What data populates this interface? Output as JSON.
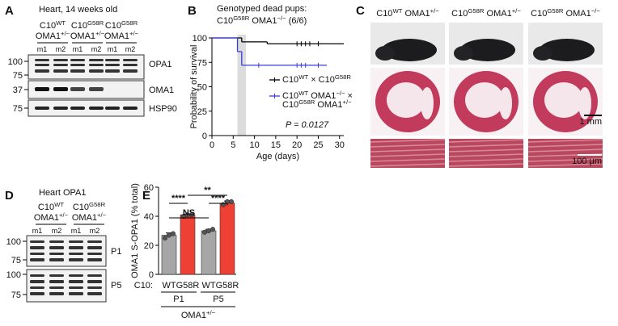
{
  "panel_a": {
    "letter": "A",
    "title": "Heart, 14 weeks old",
    "groups": [
      {
        "line1": [
          "C10",
          "WT"
        ],
        "line2": [
          "OMA1",
          "+/−"
        ]
      },
      {
        "line1": [
          "C10",
          "G58R"
        ],
        "line2": [
          "OMA1",
          "+/−"
        ]
      },
      {
        "line1": [
          "C10",
          "G58R"
        ],
        "line2": [
          "OMA1",
          "+/−"
        ]
      }
    ],
    "lanes": [
      "m1",
      "m2",
      "m1",
      "m2",
      "m1",
      "m2"
    ],
    "markers": [
      "100",
      "75",
      "37",
      "75"
    ],
    "bands": [
      "OPA1",
      "OMA1",
      "HSP90"
    ]
  },
  "chart_data": [
    {
      "type": "line",
      "letter": "B",
      "title": "Genotyped dead pups:",
      "subtitle": [
        "C10",
        "G58R",
        " OMA1",
        "−/−",
        " (6/6)"
      ],
      "xlabel": "Age (days)",
      "ylabel": "Probability of survival",
      "xlim": [
        0,
        31
      ],
      "xticks": [
        0,
        5,
        10,
        15,
        20,
        25,
        30
      ],
      "ylim": [
        0,
        100
      ],
      "yticks": [
        0,
        25,
        50,
        75,
        100
      ],
      "shaded_x": [
        6,
        8
      ],
      "annotation": "P = 0.0127",
      "series": [
        {
          "name": [
            "C10",
            "WT",
            " × C10",
            "G58R"
          ],
          "color": "#000000",
          "x": [
            0,
            7,
            13,
            31
          ],
          "values": [
            100,
            96,
            94,
            94
          ],
          "censored_x": [
            20,
            21,
            22,
            23,
            25
          ],
          "censored_y": [
            94,
            94,
            94,
            94,
            94
          ]
        },
        {
          "name": [
            "C10",
            "WT",
            " OMA1",
            "−/−",
            " ×"
          ],
          "name_line2": [
            "C10",
            "G58R",
            " OMA1",
            "+/−"
          ],
          "color": "#3b3bdc",
          "x": [
            0,
            6,
            7,
            27
          ],
          "values": [
            100,
            86,
            72,
            72
          ],
          "censored_x": [
            11,
            20,
            21,
            22,
            25
          ],
          "censored_y": [
            72,
            72,
            72,
            72,
            72
          ]
        }
      ]
    },
    {
      "type": "bar",
      "letter": "E",
      "ylabel": "OMA1 S-OPA1 (% total)",
      "categories": [
        "WT",
        "G58R",
        "WT",
        "G58R"
      ],
      "category_title": "C10:",
      "groups": [
        "P1",
        "P5"
      ],
      "group_title": [
        "OMA1",
        "+/−"
      ],
      "values": [
        27,
        41,
        30,
        49
      ],
      "errors": [
        1.5,
        0.5,
        1,
        1.5
      ],
      "points": [
        [
          25,
          27,
          28
        ],
        [
          40,
          41,
          41
        ],
        [
          29,
          30,
          31
        ],
        [
          48,
          50,
          50
        ]
      ],
      "colors": [
        "#a6a6a6",
        "#ee4035",
        "#a6a6a6",
        "#ee4035"
      ],
      "ylim": [
        0,
        60
      ],
      "yticks": [
        0,
        20,
        40,
        60
      ],
      "significance": [
        "****",
        "NS",
        "**",
        "****"
      ]
    }
  ],
  "panel_c": {
    "letter": "C",
    "columns": [
      [
        "C10",
        "WT",
        " OMA1",
        "+/−"
      ],
      [
        "C10",
        "G58R",
        " OMA1",
        "+/−"
      ],
      [
        "C10",
        "G58R",
        " OMA1",
        "−/−"
      ]
    ],
    "scale_bars": [
      "1 mm",
      "100 μm"
    ]
  },
  "panel_d": {
    "letter": "D",
    "title": "Heart OPA1",
    "groups": [
      {
        "line1": [
          "C10",
          "WT"
        ],
        "line2": [
          "OMA1",
          "+/−"
        ]
      },
      {
        "line1": [
          "C10",
          "G58R"
        ],
        "line2": [
          "OMA1",
          "+/−"
        ]
      }
    ],
    "lanes": [
      "m1",
      "m2",
      "m1",
      "m2"
    ],
    "markers": [
      "100",
      "75",
      "100",
      "75"
    ],
    "blots": [
      "P1",
      "P5"
    ]
  }
}
